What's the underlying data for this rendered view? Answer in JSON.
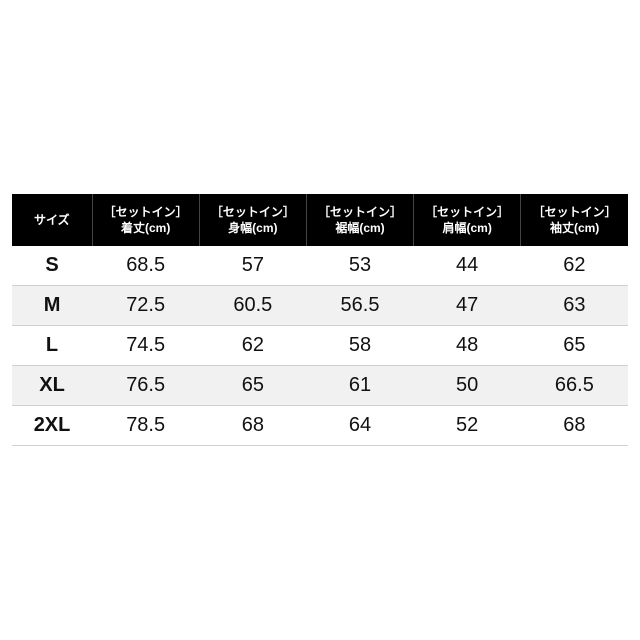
{
  "table": {
    "type": "table",
    "background_color": "#ffffff",
    "header_bg": "#000000",
    "header_fg": "#ffffff",
    "row_alt_bg": "#f1f1f1",
    "row_border_color": "#d0d0d0",
    "header_fontsize_pt": 9,
    "body_fontsize_pt": 15,
    "size_col_bold": true,
    "columns": [
      {
        "label_top": "",
        "label_bottom": "サイズ",
        "width_pct": 13
      },
      {
        "label_top": "［セットイン］",
        "label_bottom": "着丈(cm)",
        "width_pct": 17.4
      },
      {
        "label_top": "［セットイン］",
        "label_bottom": "身幅(cm)",
        "width_pct": 17.4
      },
      {
        "label_top": "［セットイン］",
        "label_bottom": "裾幅(cm)",
        "width_pct": 17.4
      },
      {
        "label_top": "［セットイン］",
        "label_bottom": "肩幅(cm)",
        "width_pct": 17.4
      },
      {
        "label_top": "［セットイン］",
        "label_bottom": "袖丈(cm)",
        "width_pct": 17.4
      }
    ],
    "rows": [
      {
        "size": "S",
        "values": [
          "68.5",
          "57",
          "53",
          "44",
          "62"
        ],
        "alt": false
      },
      {
        "size": "M",
        "values": [
          "72.5",
          "60.5",
          "56.5",
          "47",
          "63"
        ],
        "alt": true
      },
      {
        "size": "L",
        "values": [
          "74.5",
          "62",
          "58",
          "48",
          "65"
        ],
        "alt": false
      },
      {
        "size": "XL",
        "values": [
          "76.5",
          "65",
          "61",
          "50",
          "66.5"
        ],
        "alt": true
      },
      {
        "size": "2XL",
        "values": [
          "78.5",
          "68",
          "64",
          "52",
          "68"
        ],
        "alt": false
      }
    ]
  }
}
